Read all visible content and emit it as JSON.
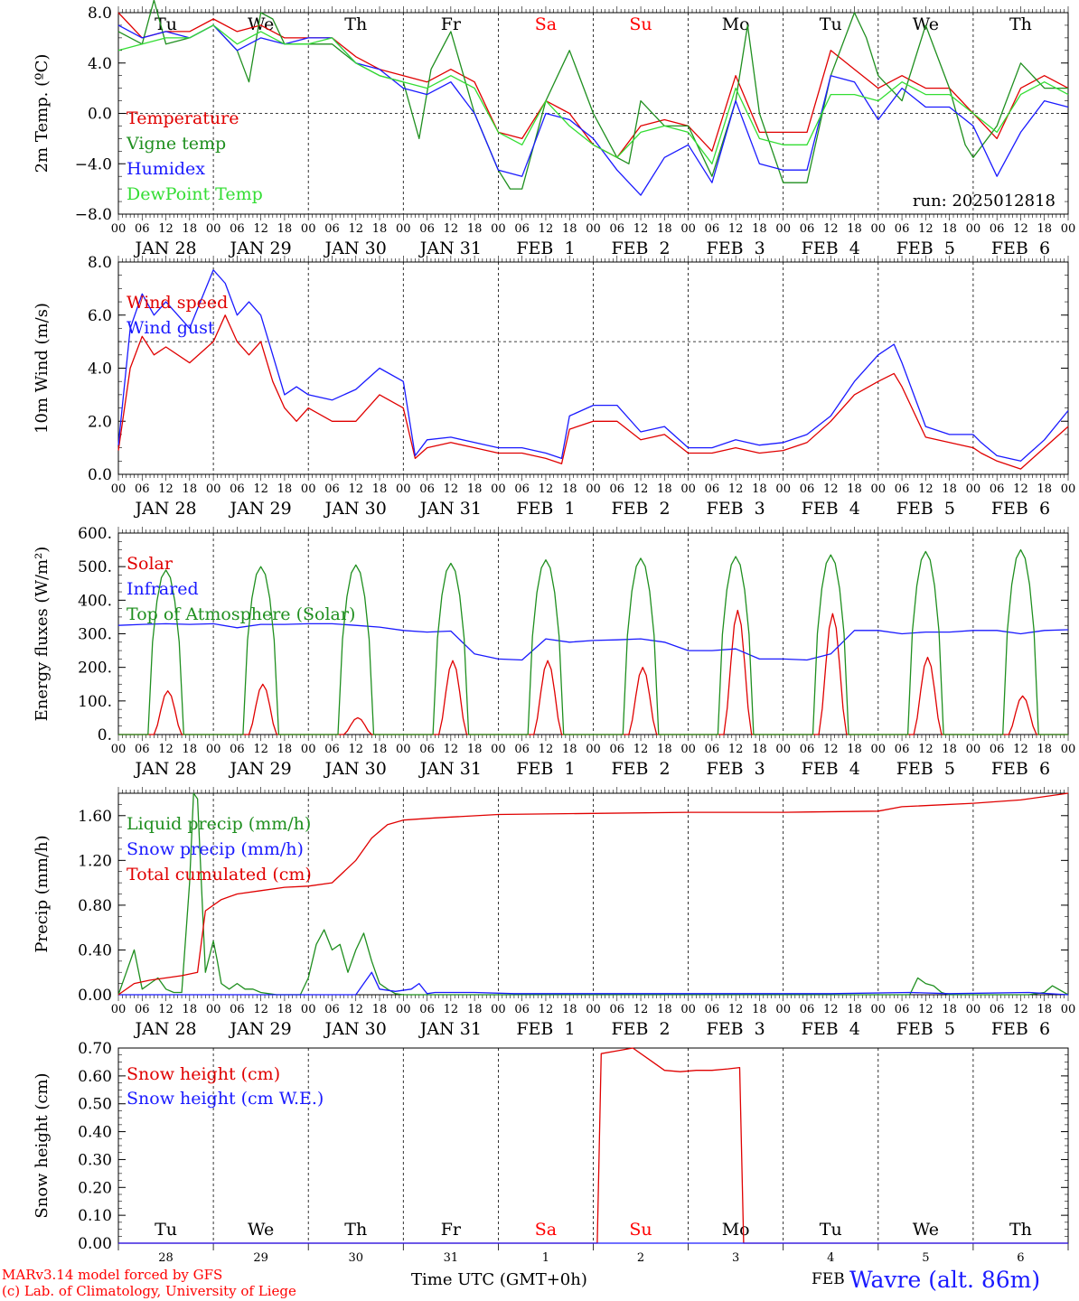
{
  "meta": {
    "model_credit": "MARv3.14 model forced by GFS",
    "lab_credit": "(c) Lab. of Climatology, University of Liege",
    "xaxis_title": "Time UTC (GMT+0h)",
    "month_label": "FEB",
    "station": "Wavre (alt. 86m)",
    "run": "run: 2025012818"
  },
  "days": {
    "weekday_labels": [
      "Tu",
      "We",
      "Th",
      "Fr",
      "Sa",
      "Su",
      "Mo",
      "Tu",
      "We",
      "Th"
    ],
    "weekend_indices": [
      4,
      5
    ],
    "date_labels": [
      "JAN 28",
      "JAN 29",
      "JAN 30",
      "JAN 31",
      "FEB  1",
      "FEB  2",
      "FEB  3",
      "FEB  4",
      "FEB  5",
      "FEB  6"
    ],
    "day_numbers": [
      "28",
      "29",
      "30",
      "31",
      "1",
      "2",
      "3",
      "4",
      "5",
      "6"
    ],
    "hour_tick_labels": [
      "00",
      "06",
      "12",
      "18"
    ],
    "final_hour_label": "00",
    "weekday_color": "#000000",
    "weekend_color": "#ff0000"
  },
  "chart_data": [
    {
      "type": "line",
      "ylabel": "2m Temp. (ºC)",
      "ylim": [
        -8,
        8
      ],
      "y_ticks": [
        -8,
        -4,
        0,
        4,
        8
      ],
      "y_tick_labels": [
        "−8.0",
        "−4.0",
        "0.0",
        "4.0",
        "8.0"
      ],
      "ref_line": 0,
      "x_unit": "hours since 2025-01-28 00 UTC",
      "xlim": [
        0,
        240
      ],
      "annotation": "run: 2025012818",
      "series": [
        {
          "name": "Temperature",
          "color": "#e00000",
          "x": [
            0,
            6,
            12,
            18,
            24,
            30,
            36,
            42,
            48,
            54,
            60,
            66,
            72,
            78,
            84,
            90,
            96,
            102,
            108,
            114,
            120,
            126,
            132,
            138,
            144,
            150,
            156,
            162,
            168,
            174,
            180,
            186,
            192,
            198,
            204,
            210,
            216,
            222,
            228,
            234,
            240
          ],
          "y": [
            8,
            6,
            6.5,
            6.5,
            7.5,
            6.5,
            7,
            6,
            6,
            6,
            4.5,
            3.5,
            3,
            2.5,
            3.5,
            2.5,
            -1.5,
            -2,
            1,
            0,
            -2.5,
            -3.5,
            -1,
            -0.5,
            -1,
            -3,
            3,
            -1.5,
            -1.5,
            -1.5,
            5,
            3.5,
            2,
            3,
            2,
            2,
            0,
            -2,
            2,
            3,
            2
          ]
        },
        {
          "name": "Vigne temp",
          "color": "#1f8f1f",
          "x": [
            0,
            6,
            9,
            12,
            18,
            24,
            30,
            33,
            36,
            39,
            42,
            48,
            54,
            60,
            66,
            72,
            76,
            79,
            84,
            90,
            96,
            99,
            102,
            108,
            114,
            120,
            126,
            129,
            132,
            138,
            144,
            150,
            156,
            159,
            162,
            168,
            174,
            180,
            186,
            189,
            192,
            198,
            204,
            210,
            214,
            216,
            222,
            228,
            234,
            240
          ],
          "y": [
            6.5,
            5.5,
            9,
            5.5,
            6,
            7,
            5,
            2.5,
            8,
            7.5,
            5.5,
            5.5,
            5.5,
            4,
            3,
            2.5,
            -2,
            3.5,
            6.5,
            0,
            -4.5,
            -6,
            -6,
            1,
            5,
            0,
            -3.5,
            -4,
            1,
            -1,
            -1,
            -5,
            1,
            7,
            0,
            -5.5,
            -5.5,
            3,
            8,
            6,
            3,
            1,
            7,
            2,
            -2.5,
            -3.5,
            -1,
            4,
            2,
            2
          ]
        },
        {
          "name": "Humidex",
          "color": "#1a1aff",
          "x": [
            0,
            6,
            12,
            18,
            24,
            30,
            36,
            42,
            48,
            54,
            60,
            66,
            72,
            78,
            84,
            90,
            96,
            102,
            108,
            114,
            120,
            126,
            132,
            138,
            144,
            150,
            156,
            162,
            168,
            174,
            180,
            186,
            192,
            198,
            204,
            210,
            216,
            222,
            228,
            234,
            240
          ],
          "y": [
            7,
            6,
            6.5,
            6,
            7,
            5,
            6,
            5.5,
            6,
            6,
            4,
            3.5,
            2,
            1.5,
            2.5,
            0,
            -4.5,
            -5,
            0,
            -0.5,
            -2,
            -4.5,
            -6.5,
            -3.5,
            -2.5,
            -5.5,
            1,
            -4,
            -4.5,
            -4.5,
            3,
            2.5,
            -0.5,
            2,
            0.5,
            0.5,
            -1,
            -5,
            -1.5,
            1,
            0.5
          ]
        },
        {
          "name": "DewPoint Temp",
          "color": "#33dd33",
          "x": [
            0,
            6,
            12,
            18,
            24,
            30,
            36,
            42,
            48,
            54,
            60,
            66,
            72,
            78,
            84,
            90,
            96,
            102,
            108,
            114,
            120,
            126,
            132,
            138,
            144,
            150,
            156,
            162,
            168,
            174,
            180,
            186,
            192,
            198,
            204,
            210,
            216,
            222,
            228,
            234,
            240
          ],
          "y": [
            5,
            5.5,
            6,
            6,
            7,
            5.5,
            6.5,
            5.5,
            5.5,
            6,
            4,
            3,
            2.5,
            2,
            3,
            2,
            -1.5,
            -2.5,
            1,
            -1,
            -2.5,
            -3.5,
            -1.5,
            -1,
            -1.5,
            -4,
            2,
            -2,
            -2.5,
            -2.5,
            1.5,
            1.5,
            1,
            2.5,
            1.5,
            1.5,
            0,
            -1.5,
            1.5,
            2.5,
            1.5
          ]
        }
      ]
    },
    {
      "type": "line",
      "ylabel": "10m Wind (m/s)",
      "ylim": [
        0,
        8
      ],
      "y_ticks": [
        0,
        2,
        4,
        6,
        8
      ],
      "y_tick_labels": [
        "0.0",
        "2.0",
        "4.0",
        "6.0",
        "8.0"
      ],
      "ref_line": 5,
      "xlim": [
        0,
        240
      ],
      "series": [
        {
          "name": "Wind speed",
          "color": "#e00000",
          "x": [
            0,
            3,
            6,
            9,
            12,
            18,
            24,
            27,
            30,
            33,
            36,
            39,
            42,
            45,
            48,
            54,
            60,
            66,
            72,
            75,
            78,
            84,
            90,
            96,
            102,
            108,
            112,
            114,
            120,
            126,
            132,
            138,
            144,
            150,
            156,
            162,
            168,
            174,
            180,
            186,
            192,
            196,
            198,
            204,
            210,
            216,
            218,
            222,
            228,
            234,
            240
          ],
          "y": [
            0.9,
            4,
            5.2,
            4.5,
            4.8,
            4.2,
            5,
            6,
            5,
            4.5,
            5,
            3.5,
            2.5,
            2,
            2.5,
            2,
            2,
            3,
            2.5,
            0.6,
            1,
            1.2,
            1,
            0.8,
            0.8,
            0.6,
            0.4,
            1.7,
            2,
            2,
            1.3,
            1.5,
            0.8,
            0.8,
            1,
            0.8,
            0.9,
            1.2,
            2,
            3,
            3.5,
            3.8,
            3.3,
            1.4,
            1.2,
            1,
            0.8,
            0.5,
            0.2,
            1,
            1.8
          ]
        },
        {
          "name": "Wind gust",
          "color": "#1a1aff",
          "x": [
            0,
            3,
            6,
            9,
            12,
            18,
            24,
            27,
            30,
            33,
            36,
            39,
            42,
            45,
            48,
            54,
            60,
            66,
            72,
            75,
            78,
            84,
            90,
            96,
            102,
            108,
            112,
            114,
            120,
            126,
            132,
            138,
            144,
            150,
            156,
            162,
            168,
            174,
            180,
            186,
            192,
            196,
            198,
            204,
            210,
            216,
            218,
            222,
            228,
            234,
            240
          ],
          "y": [
            1.1,
            5.5,
            6.8,
            6,
            6.5,
            5.5,
            7.7,
            7.2,
            6,
            6.5,
            6,
            4.5,
            3,
            3.3,
            3,
            2.8,
            3.2,
            4,
            3.5,
            0.7,
            1.3,
            1.4,
            1.2,
            1,
            1,
            0.8,
            0.6,
            2.2,
            2.6,
            2.6,
            1.6,
            1.8,
            1,
            1,
            1.3,
            1.1,
            1.2,
            1.5,
            2.2,
            3.5,
            4.5,
            4.9,
            4.2,
            1.8,
            1.5,
            1.5,
            1.2,
            0.7,
            0.5,
            1.3,
            2.4
          ]
        }
      ]
    },
    {
      "type": "line",
      "ylabel": "Energy fluxes (W/m²)",
      "ylim": [
        0,
        600
      ],
      "y_ticks": [
        0,
        100,
        200,
        300,
        400,
        500,
        600
      ],
      "y_tick_labels": [
        "0.",
        "100.",
        "200.",
        "300.",
        "400.",
        "500.",
        "600."
      ],
      "xlim": [
        0,
        240
      ],
      "series": [
        {
          "name": "Solar",
          "color": "#e00000",
          "peaks": [
            130,
            150,
            50,
            220,
            220,
            200,
            370,
            360,
            230,
            115
          ]
        },
        {
          "name": "Infrared",
          "color": "#1a1aff",
          "x": [
            0,
            6,
            12,
            18,
            24,
            30,
            36,
            42,
            48,
            54,
            60,
            66,
            72,
            78,
            84,
            90,
            96,
            102,
            108,
            114,
            120,
            126,
            132,
            138,
            144,
            150,
            156,
            162,
            168,
            174,
            180,
            186,
            192,
            198,
            204,
            210,
            216,
            222,
            228,
            234,
            240
          ],
          "y": [
            325,
            328,
            330,
            328,
            330,
            318,
            328,
            328,
            330,
            330,
            325,
            320,
            310,
            305,
            308,
            240,
            225,
            222,
            285,
            275,
            280,
            282,
            285,
            275,
            250,
            250,
            255,
            225,
            225,
            222,
            240,
            310,
            310,
            300,
            305,
            305,
            310,
            310,
            300,
            310,
            312
          ]
        },
        {
          "name": "Top of Atmosphere (Solar)",
          "color": "#1f8f1f",
          "peaks": [
            490,
            500,
            505,
            510,
            520,
            525,
            530,
            535,
            545,
            550
          ]
        }
      ]
    },
    {
      "type": "line",
      "ylabel": "Precip (mm/h)",
      "ylim": [
        0,
        1.8
      ],
      "y_ticks": [
        0,
        0.4,
        0.8,
        1.2,
        1.6
      ],
      "y_tick_labels": [
        "0.00",
        "0.40",
        "0.80",
        "1.20",
        "1.60"
      ],
      "xlim": [
        0,
        240
      ],
      "series": [
        {
          "name": "Liquid precip (mm/h)",
          "color": "#1f8f1f",
          "x": [
            0,
            2,
            4,
            6,
            8,
            10,
            12,
            14,
            16,
            18,
            19,
            20,
            22,
            24,
            25,
            26,
            28,
            30,
            32,
            34,
            36,
            38,
            40,
            42,
            44,
            46,
            48,
            50,
            52,
            54,
            56,
            58,
            60,
            62,
            64,
            66,
            68,
            70,
            72,
            200,
            202,
            204,
            206,
            208,
            210,
            230,
            234,
            236,
            240
          ],
          "y": [
            0,
            0.2,
            0.4,
            0.05,
            0.1,
            0.15,
            0.05,
            0.02,
            0.02,
            1.0,
            1.8,
            1.75,
            0.2,
            0.48,
            0.3,
            0.1,
            0.05,
            0.1,
            0.05,
            0.05,
            0.02,
            0.01,
            0,
            0,
            0,
            0,
            0.15,
            0.45,
            0.58,
            0.4,
            0.45,
            0.2,
            0.4,
            0.55,
            0.3,
            0.1,
            0.05,
            0.01,
            0,
            0,
            0.15,
            0.1,
            0.08,
            0.02,
            0,
            0,
            0.02,
            0.08,
            0
          ]
        },
        {
          "name": "Snow precip (mm/h)",
          "color": "#1a1aff",
          "x": [
            0,
            60,
            62,
            64,
            66,
            70,
            74,
            76,
            78,
            80,
            90,
            100,
            110,
            120,
            180,
            200,
            210,
            230,
            240
          ],
          "y": [
            0,
            0,
            0.1,
            0.2,
            0.05,
            0.03,
            0.05,
            0.1,
            0.01,
            0.02,
            0.02,
            0.01,
            0.01,
            0.01,
            0.01,
            0.02,
            0.01,
            0.02,
            0
          ]
        },
        {
          "name": "Total cumulated (cm)",
          "color": "#e00000",
          "x": [
            0,
            4,
            8,
            12,
            16,
            20,
            22,
            26,
            30,
            36,
            42,
            48,
            54,
            60,
            64,
            68,
            72,
            80,
            96,
            120,
            144,
            168,
            192,
            198,
            216,
            228,
            240
          ],
          "y": [
            0,
            0.1,
            0.13,
            0.15,
            0.17,
            0.2,
            0.75,
            0.85,
            0.9,
            0.93,
            0.96,
            0.97,
            1.0,
            1.2,
            1.4,
            1.52,
            1.56,
            1.58,
            1.61,
            1.62,
            1.63,
            1.63,
            1.64,
            1.68,
            1.71,
            1.74,
            1.8
          ]
        }
      ]
    },
    {
      "type": "line",
      "ylabel": "Snow height (cm)",
      "ylim": [
        0,
        0.7
      ],
      "y_ticks": [
        0,
        0.1,
        0.2,
        0.3,
        0.4,
        0.5,
        0.6,
        0.7
      ],
      "y_tick_labels": [
        "0.00",
        "0.10",
        "0.20",
        "0.30",
        "0.40",
        "0.50",
        "0.60",
        "0.70"
      ],
      "xlim": [
        0,
        240
      ],
      "series": [
        {
          "name": "Snow height (cm)",
          "color": "#e00000",
          "x": [
            0,
            121,
            122,
            126,
            130,
            134,
            138,
            142,
            146,
            150,
            154,
            157,
            158,
            240
          ],
          "y": [
            0,
            0,
            0.68,
            0.69,
            0.7,
            0.66,
            0.62,
            0.615,
            0.62,
            0.62,
            0.625,
            0.63,
            0,
            0
          ]
        },
        {
          "name": "Snow height (cm W.E.)",
          "color": "#1a1aff",
          "x": [
            0,
            240
          ],
          "y": [
            0,
            0
          ]
        }
      ]
    }
  ]
}
